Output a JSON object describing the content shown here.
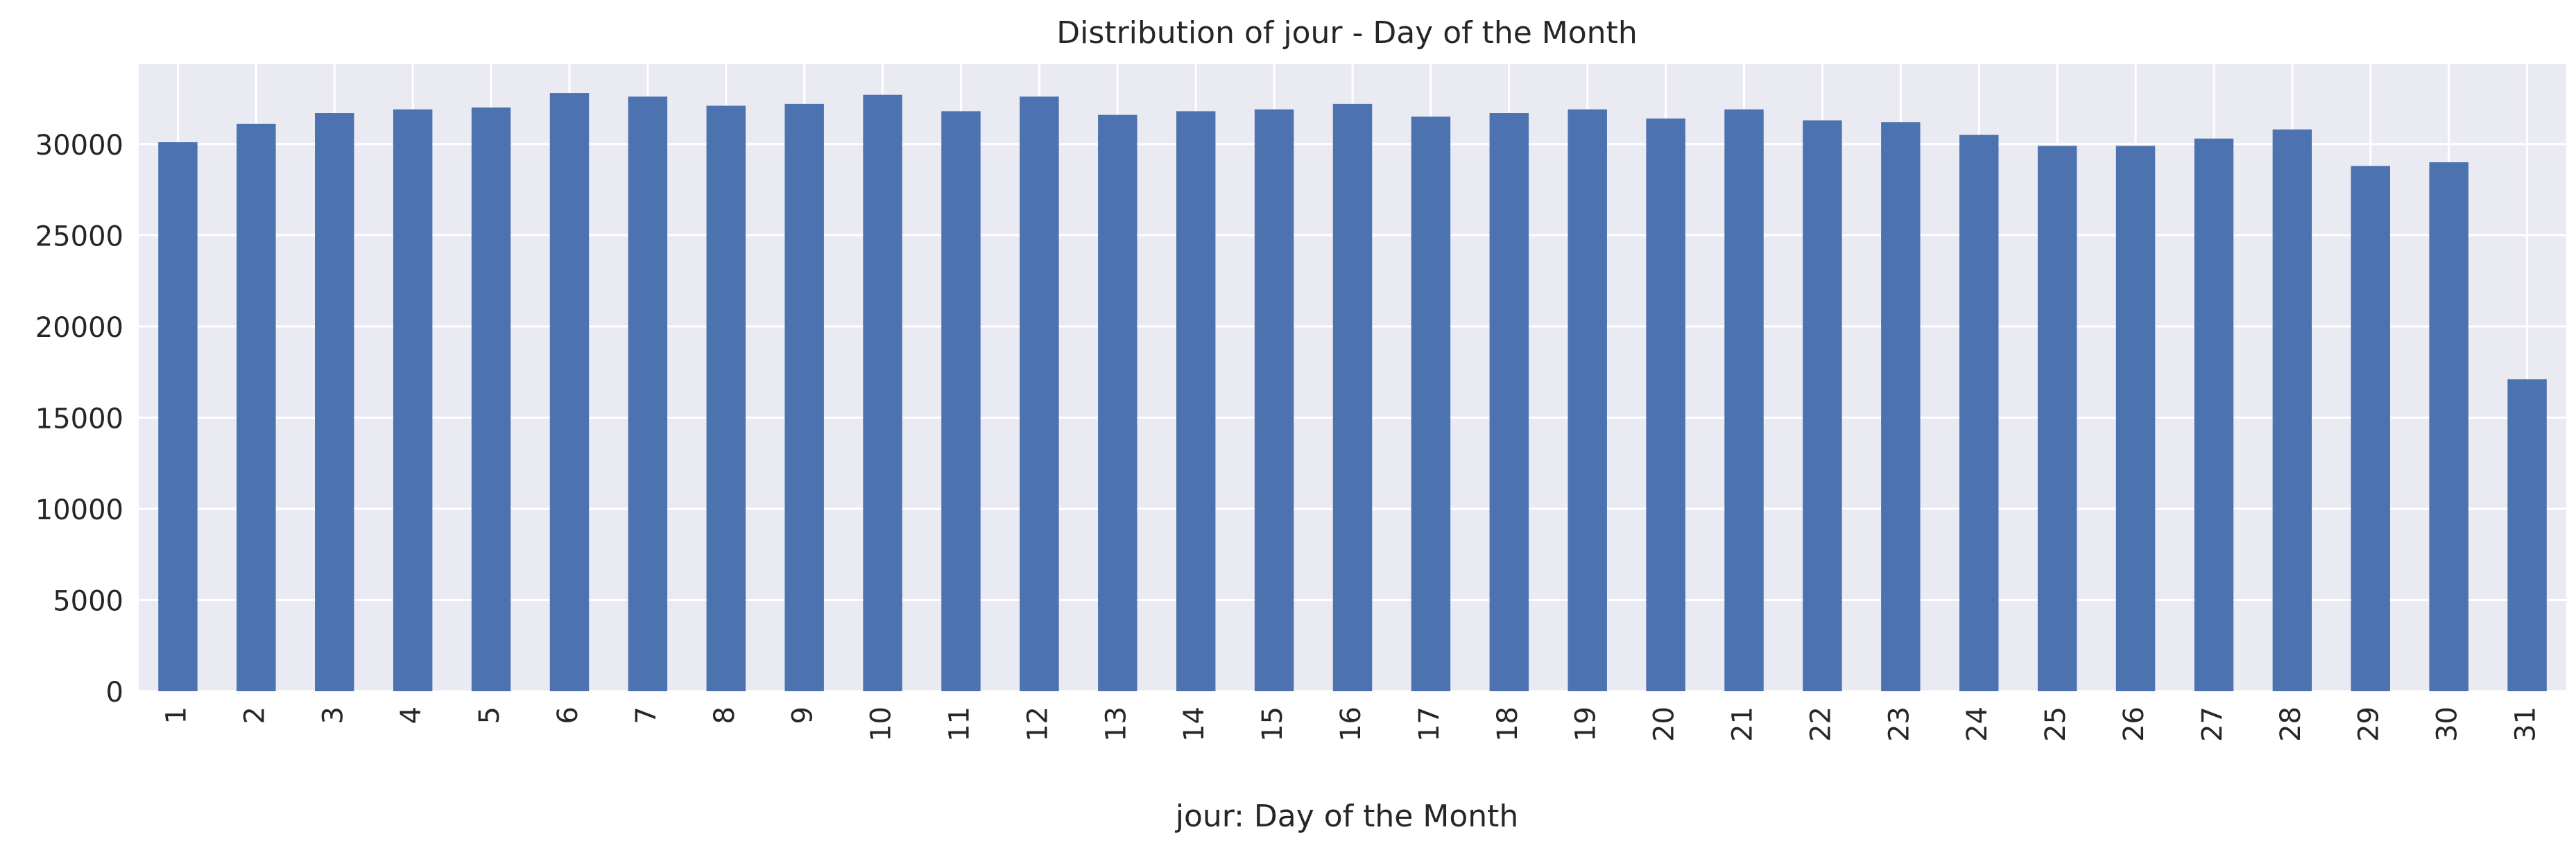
{
  "chart_data": {
    "type": "bar",
    "title": "Distribution of jour - Day of the Month",
    "xlabel": "jour: Day of the Month",
    "ylabel": "",
    "categories": [
      "1",
      "2",
      "3",
      "4",
      "5",
      "6",
      "7",
      "8",
      "9",
      "10",
      "11",
      "12",
      "13",
      "14",
      "15",
      "16",
      "17",
      "18",
      "19",
      "20",
      "21",
      "22",
      "23",
      "24",
      "25",
      "26",
      "27",
      "28",
      "29",
      "30",
      "31"
    ],
    "values": [
      30100,
      31100,
      31700,
      31900,
      32000,
      32800,
      32600,
      32100,
      32200,
      32700,
      31800,
      32600,
      31600,
      31800,
      31900,
      32200,
      31500,
      31700,
      31900,
      31400,
      31900,
      31300,
      31200,
      30500,
      29900,
      29900,
      30300,
      30800,
      28800,
      29000,
      17100
    ],
    "ylim": [
      0,
      34400
    ],
    "yticks": [
      0,
      5000,
      10000,
      15000,
      20000,
      25000,
      30000
    ],
    "grid": true,
    "legend": "none",
    "colors": {
      "bar": "#4c72b0",
      "plot_background": "#eaeaf2",
      "grid": "#ffffff",
      "text": "#262626"
    }
  }
}
